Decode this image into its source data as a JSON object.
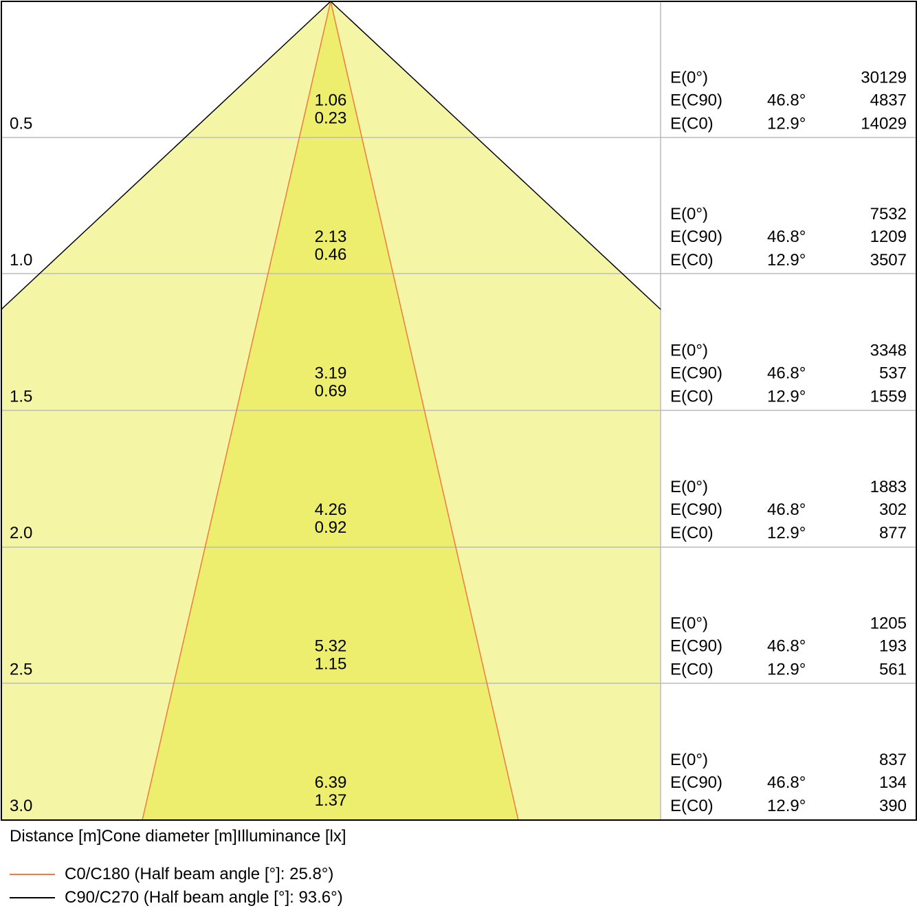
{
  "colors": {
    "outer_fill": "#f4f6a6",
    "inner_fill": "#eeee6e",
    "c0_line": "#f07a3a",
    "c90_line": "#000000",
    "grid": "#bbbbbb",
    "frame": "#000000"
  },
  "distance_labels": [
    "0.5",
    "1.0",
    "1.5",
    "2.0",
    "2.5",
    "3.0"
  ],
  "rows": [
    {
      "c90_diameter": "1.06",
      "c0_diameter": "0.23",
      "e0_label": "E(0°)",
      "c90_label": "E(C90)",
      "c0_label": "E(C0)",
      "c90_angle": "46.8°",
      "c0_angle": "12.9°",
      "e0_value": "30129",
      "c90_value": "4837",
      "c0_value": "14029"
    },
    {
      "c90_diameter": "2.13",
      "c0_diameter": "0.46",
      "e0_label": "E(0°)",
      "c90_label": "E(C90)",
      "c0_label": "E(C0)",
      "c90_angle": "46.8°",
      "c0_angle": "12.9°",
      "e0_value": "7532",
      "c90_value": "1209",
      "c0_value": "3507"
    },
    {
      "c90_diameter": "3.19",
      "c0_diameter": "0.69",
      "e0_label": "E(0°)",
      "c90_label": "E(C90)",
      "c0_label": "E(C0)",
      "c90_angle": "46.8°",
      "c0_angle": "12.9°",
      "e0_value": "3348",
      "c90_value": "537",
      "c0_value": "1559"
    },
    {
      "c90_diameter": "4.26",
      "c0_diameter": "0.92",
      "e0_label": "E(0°)",
      "c90_label": "E(C90)",
      "c0_label": "E(C0)",
      "c90_angle": "46.8°",
      "c0_angle": "12.9°",
      "e0_value": "1883",
      "c90_value": "302",
      "c0_value": "877"
    },
    {
      "c90_diameter": "5.32",
      "c0_diameter": "1.15",
      "e0_label": "E(0°)",
      "c90_label": "E(C90)",
      "c0_label": "E(C0)",
      "c90_angle": "46.8°",
      "c0_angle": "12.9°",
      "e0_value": "1205",
      "c90_value": "193",
      "c0_value": "561"
    },
    {
      "c90_diameter": "6.39",
      "c0_diameter": "1.37",
      "e0_label": "E(0°)",
      "c90_label": "E(C90)",
      "c0_label": "E(C0)",
      "c90_angle": "46.8°",
      "c0_angle": "12.9°",
      "e0_value": "837",
      "c90_value": "134",
      "c0_value": "390"
    }
  ],
  "footer_text": "Distance [m]Cone diameter [m]Illuminance [lx]",
  "legend": [
    {
      "label": "C0/C180 (Half beam angle [°]: 25.8°)",
      "color": "#f07a3a"
    },
    {
      "label": "C90/C270 (Half beam angle [°]: 93.6°)",
      "color": "#000000"
    }
  ]
}
